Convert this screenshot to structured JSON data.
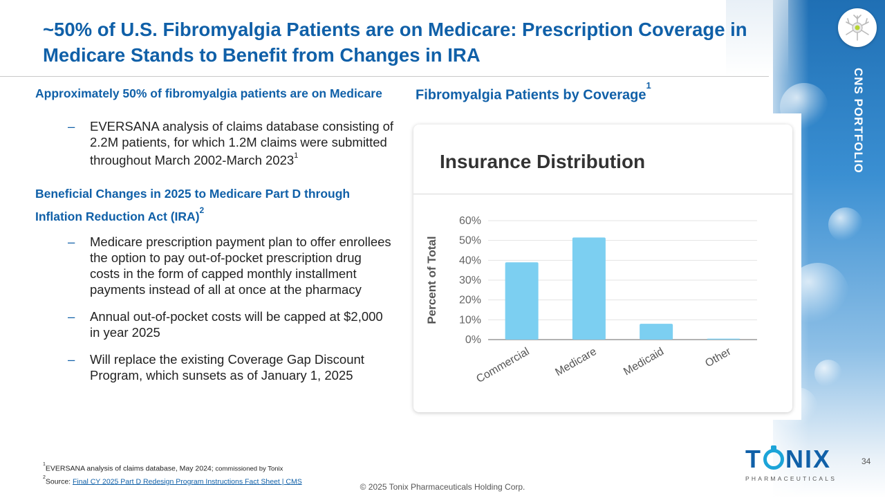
{
  "title": "~50% of U.S. Fibromyalgia Patients are on Medicare: Prescription Coverage in Medicare Stands to Benefit from Changes in IRA",
  "portfolio_tag": "CNS PORTFOLIO",
  "sections": [
    {
      "heading": "Approximately 50% of fibromyalgia patients are on Medicare",
      "heading_sup": "",
      "bullets": [
        {
          "text": "EVERSANA analysis of claims database consisting of 2.2M patients, for which 1.2M claims were submitted throughout March 2002-March 2023",
          "sup": "1"
        }
      ]
    },
    {
      "heading": "Beneficial  Changes in 2025 to Medicare Part D through Inflation Reduction Act (IRA)",
      "heading_sup": "2",
      "bullets": [
        {
          "text": "Medicare prescription payment plan to offer enrollees the option to pay out-of-pocket prescription drug costs in the form of capped monthly installment payments instead of all at once at the pharmacy",
          "sup": ""
        },
        {
          "text": "Annual out-of-pocket costs will be capped at $2,000 in year 2025",
          "sup": ""
        },
        {
          "text": "Will replace the existing Coverage Gap Discount Program, which sunsets as of January 1, 2025",
          "sup": ""
        }
      ]
    }
  ],
  "chart_heading": "Fibromyalgia Patients by Coverage",
  "chart_heading_sup": "1",
  "chart_data": {
    "type": "bar",
    "title": "Insurance Distribution",
    "xlabel": "",
    "ylabel": "Percent of Total",
    "categories": [
      "Commercial",
      "Medicare",
      "Medicaid",
      "Other"
    ],
    "values": [
      39,
      51.5,
      8,
      0.5
    ],
    "ylim": [
      0,
      60
    ],
    "yticks": [
      0,
      10,
      20,
      30,
      40,
      50,
      60
    ],
    "ytick_labels": [
      "0%",
      "10%",
      "20%",
      "30%",
      "40%",
      "50%",
      "60%"
    ],
    "grid": true,
    "bar_color": "#7ccff1",
    "legend": "none"
  },
  "footnotes": {
    "note1_sup": "1",
    "note1_text": "EVERSANA analysis of claims database, May 2024;",
    "note1_small": " commissioned by Tonix",
    "note2_sup": "2",
    "note2_prefix": "Source: ",
    "note2_link": "Final CY 2025 Part D Redesign Program Instructions Fact Sheet | CMS"
  },
  "copyright": "© 2025 Tonix Pharmaceuticals Holding Corp.",
  "page_number": "34",
  "brand": {
    "word_left": "T",
    "word_right": "NIX",
    "subtitle": "PHARMACEUTICALS"
  },
  "colors": {
    "accent": "#1060a8",
    "bar": "#7ccff1",
    "brand_light": "#1ca4d8"
  }
}
